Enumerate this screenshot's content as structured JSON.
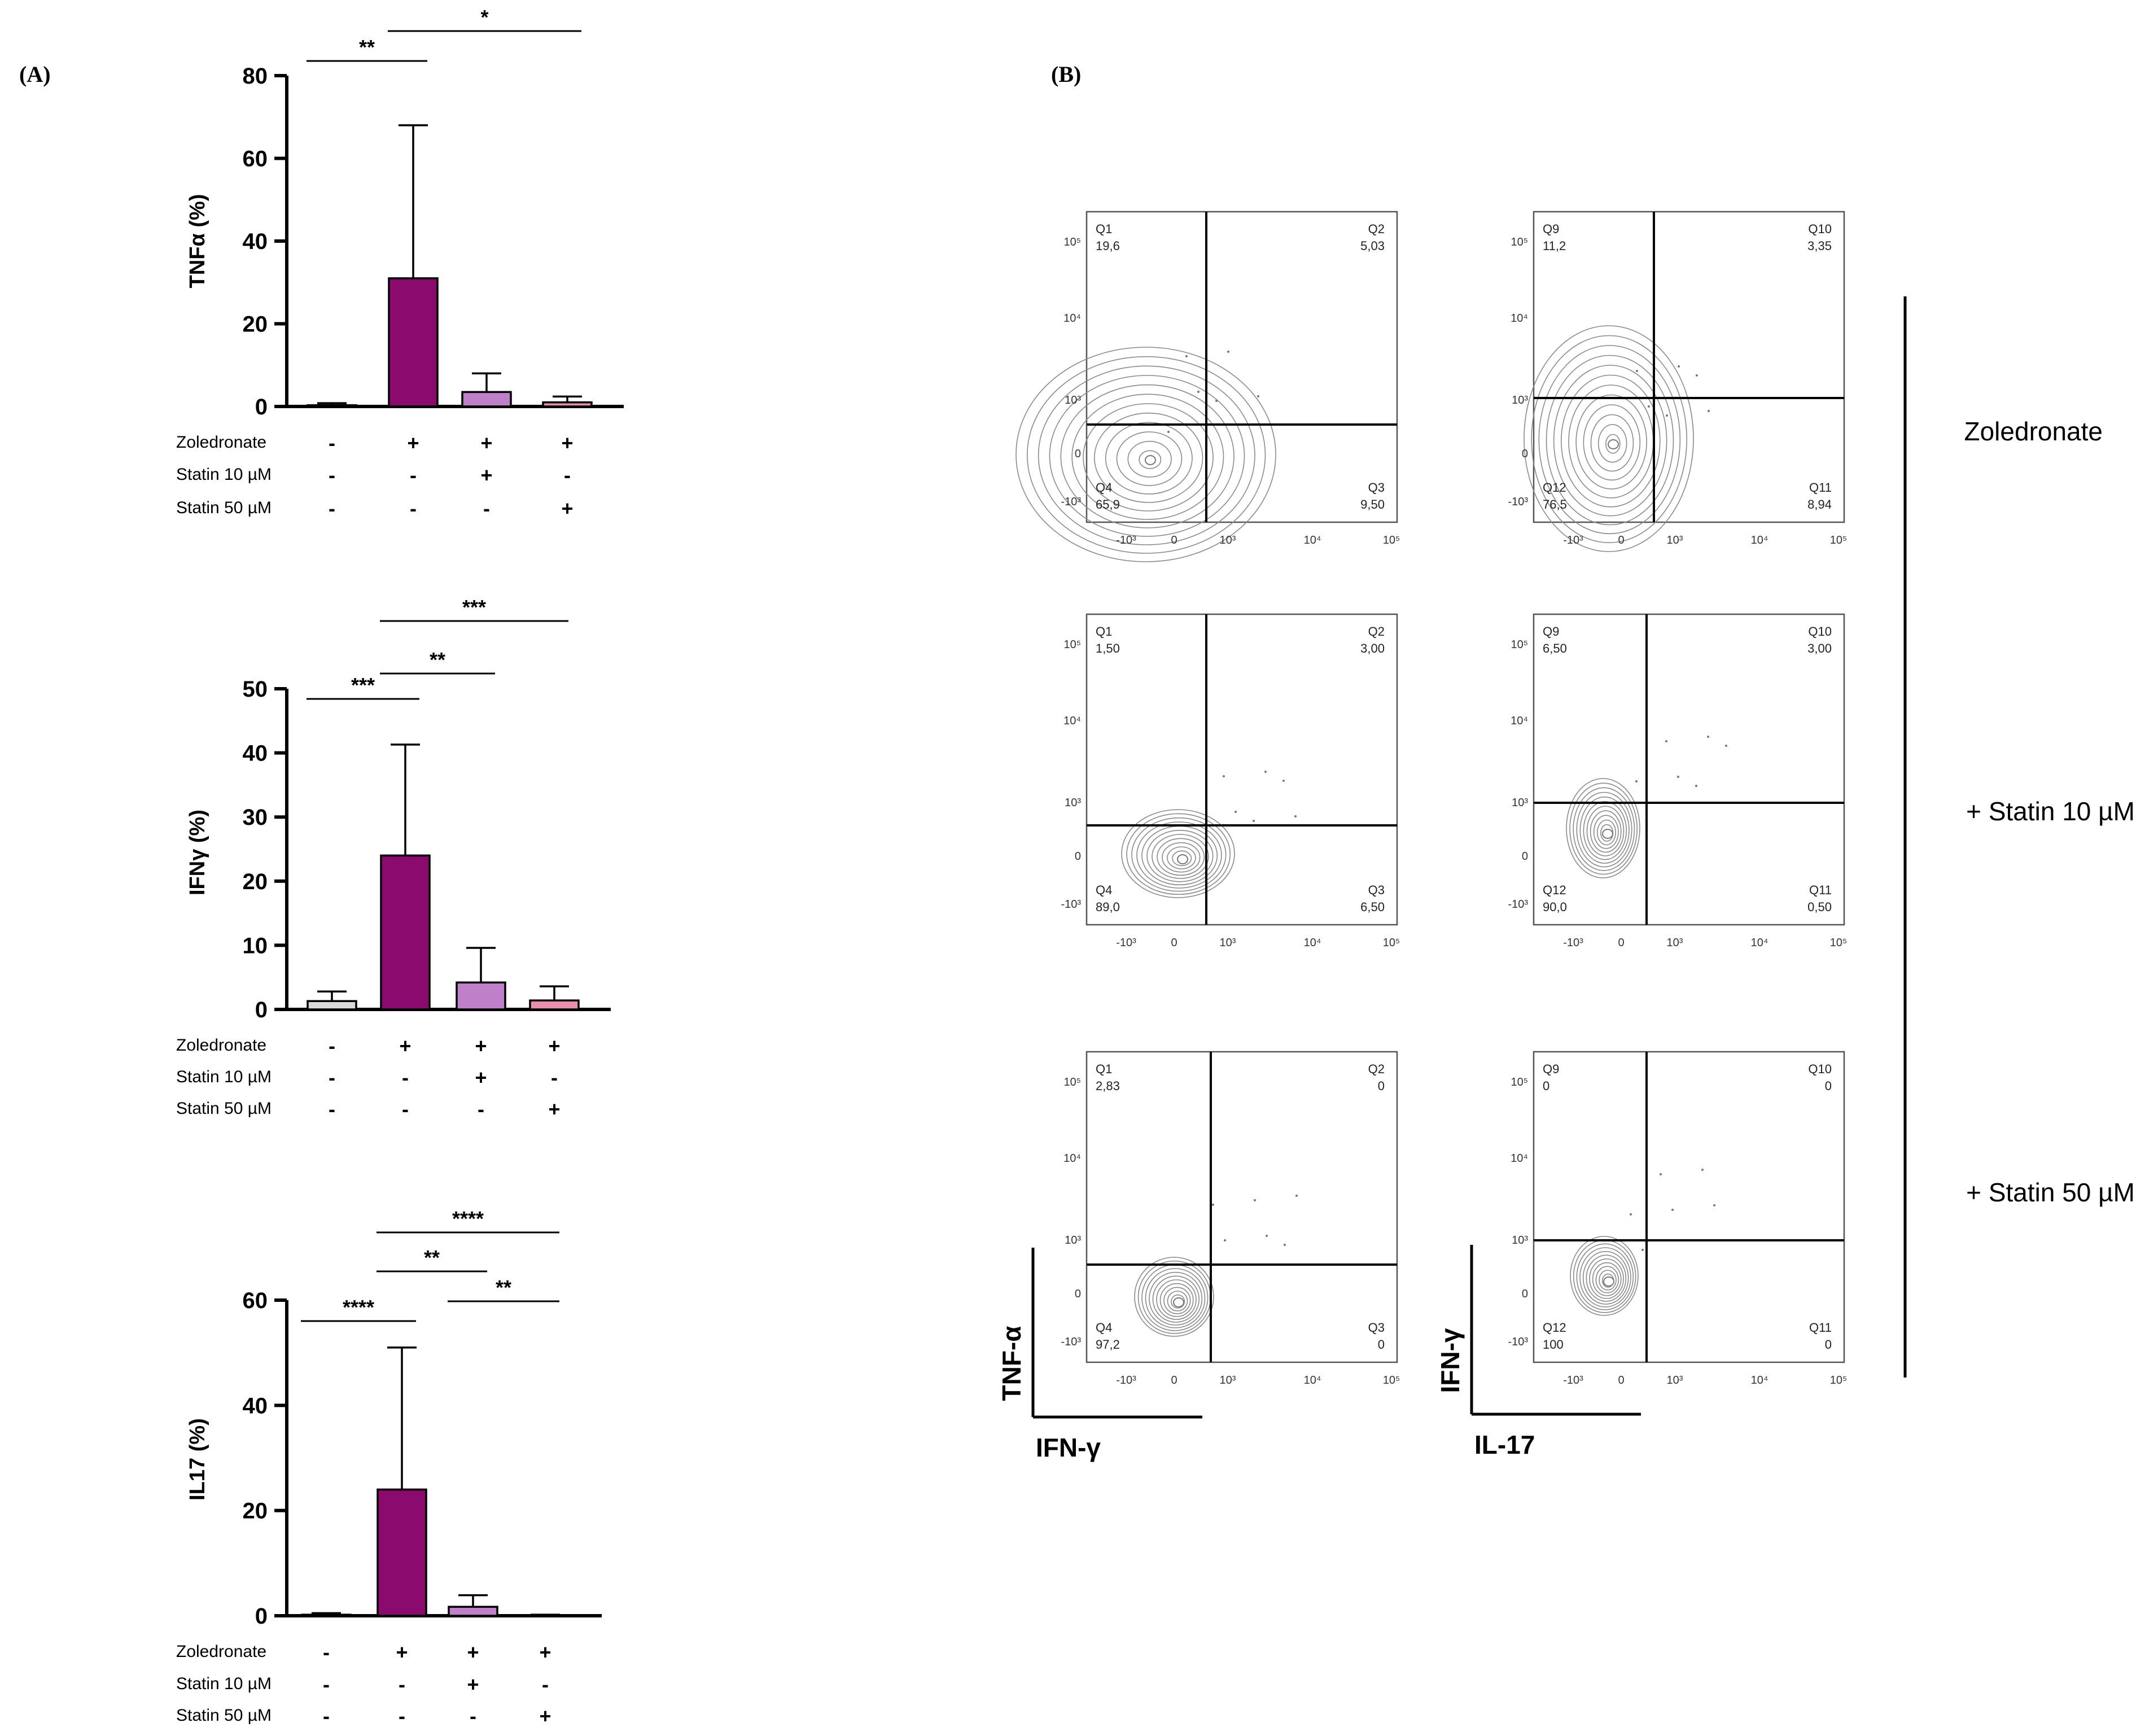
{
  "panels": {
    "a": "(A)",
    "b": "(B)"
  },
  "chart_data": [
    {
      "type": "bar",
      "ylabel": "TNFα (%)",
      "ylim": [
        0,
        80
      ],
      "yticks": [
        0,
        20,
        40,
        60,
        80
      ],
      "values": [
        0.3,
        31,
        3.5,
        1
      ],
      "errors": [
        0.5,
        37,
        4.5,
        1.4
      ],
      "colors": [
        "#d9d9d9",
        "#8b0a6e",
        "#c07fc9",
        "#e68fae"
      ],
      "rows": [
        {
          "label": "Zoledronate",
          "signs": [
            "-",
            "+",
            "+",
            "+"
          ]
        },
        {
          "label": "Statin 10 µM",
          "signs": [
            "-",
            "-",
            "+",
            "-"
          ]
        },
        {
          "label": "Statin 50 µM",
          "signs": [
            "-",
            "-",
            "-",
            "+"
          ]
        }
      ],
      "significance": [
        {
          "from": 0,
          "to": 1,
          "label": "**"
        },
        {
          "from": 1,
          "to": 3,
          "label": "*"
        }
      ]
    },
    {
      "type": "bar",
      "ylabel": "IFNγ (%)",
      "ylim": [
        0,
        50
      ],
      "yticks": [
        0,
        10,
        20,
        30,
        40,
        50
      ],
      "values": [
        1.3,
        24,
        4.2,
        1.4
      ],
      "errors": [
        1.5,
        17.3,
        5.4,
        2.2
      ],
      "colors": [
        "#d9d9d9",
        "#8b0a6e",
        "#c07fc9",
        "#e68fae"
      ],
      "rows": [
        {
          "label": "Zoledronate",
          "signs": [
            "-",
            "+",
            "+",
            "+"
          ]
        },
        {
          "label": "Statin 10 µM",
          "signs": [
            "-",
            "-",
            "+",
            "-"
          ]
        },
        {
          "label": "Statin 50 µM",
          "signs": [
            "-",
            "-",
            "-",
            "+"
          ]
        }
      ],
      "significance": [
        {
          "from": 0,
          "to": 1,
          "label": "***"
        },
        {
          "from": 1,
          "to": 2,
          "label": "**"
        },
        {
          "from": 1,
          "to": 3,
          "label": "***"
        }
      ]
    },
    {
      "type": "bar",
      "ylabel": "IL17 (%)",
      "ylim": [
        0,
        60
      ],
      "yticks": [
        0,
        20,
        40,
        60
      ],
      "values": [
        0.2,
        24,
        1.7,
        0.1
      ],
      "errors": [
        0.3,
        27,
        2.2,
        0.1
      ],
      "colors": [
        "#d9d9d9",
        "#8b0a6e",
        "#c07fc9",
        "#e68fae"
      ],
      "rows": [
        {
          "label": "Zoledronate",
          "signs": [
            "-",
            "+",
            "+",
            "+"
          ]
        },
        {
          "label": "Statin 10 µM",
          "signs": [
            "-",
            "-",
            "+",
            "-"
          ]
        },
        {
          "label": "Statin 50 µM",
          "signs": [
            "-",
            "-",
            "-",
            "+"
          ]
        }
      ],
      "significance": [
        {
          "from": 0,
          "to": 1,
          "label": "****"
        },
        {
          "from": 1,
          "to": 2,
          "label": "**"
        },
        {
          "from": 2,
          "to": 3,
          "label": "**"
        },
        {
          "from": 1,
          "to": 3,
          "label": "****"
        }
      ]
    }
  ],
  "flow": {
    "tick_labels": [
      "-10³",
      "0",
      "10³",
      "10⁴",
      "10⁵"
    ],
    "plots": [
      {
        "q": [
          [
            "Q1",
            "19,6"
          ],
          [
            "Q2",
            "5,03"
          ],
          [
            "Q3",
            "9,50"
          ],
          [
            "Q4",
            "65,9"
          ]
        ]
      },
      {
        "q": [
          [
            "Q9",
            "11,2"
          ],
          [
            "Q10",
            "3,35"
          ],
          [
            "Q11",
            "8,94"
          ],
          [
            "Q12",
            "76,5"
          ]
        ]
      },
      {
        "q": [
          [
            "Q1",
            "1,50"
          ],
          [
            "Q2",
            "3,00"
          ],
          [
            "Q3",
            "6,50"
          ],
          [
            "Q4",
            "89,0"
          ]
        ]
      },
      {
        "q": [
          [
            "Q9",
            "6,50"
          ],
          [
            "Q10",
            "3,00"
          ],
          [
            "Q11",
            "0,50"
          ],
          [
            "Q12",
            "90,0"
          ]
        ]
      },
      {
        "q": [
          [
            "Q1",
            "2,83"
          ],
          [
            "Q2",
            "0"
          ],
          [
            "Q3",
            "0"
          ],
          [
            "Q4",
            "97,2"
          ]
        ]
      },
      {
        "q": [
          [
            "Q9",
            "0"
          ],
          [
            "Q10",
            "0"
          ],
          [
            "Q11",
            "0"
          ],
          [
            "Q12",
            "100"
          ]
        ]
      }
    ],
    "axis_labels": [
      {
        "y": "TNF-α",
        "x": "IFN-γ"
      },
      {
        "y": "IFN-γ",
        "x": "IL-17"
      }
    ],
    "conditions": [
      "Zoledronate",
      "+ Statin 10 µM",
      "+ Statin 50 µM"
    ]
  }
}
